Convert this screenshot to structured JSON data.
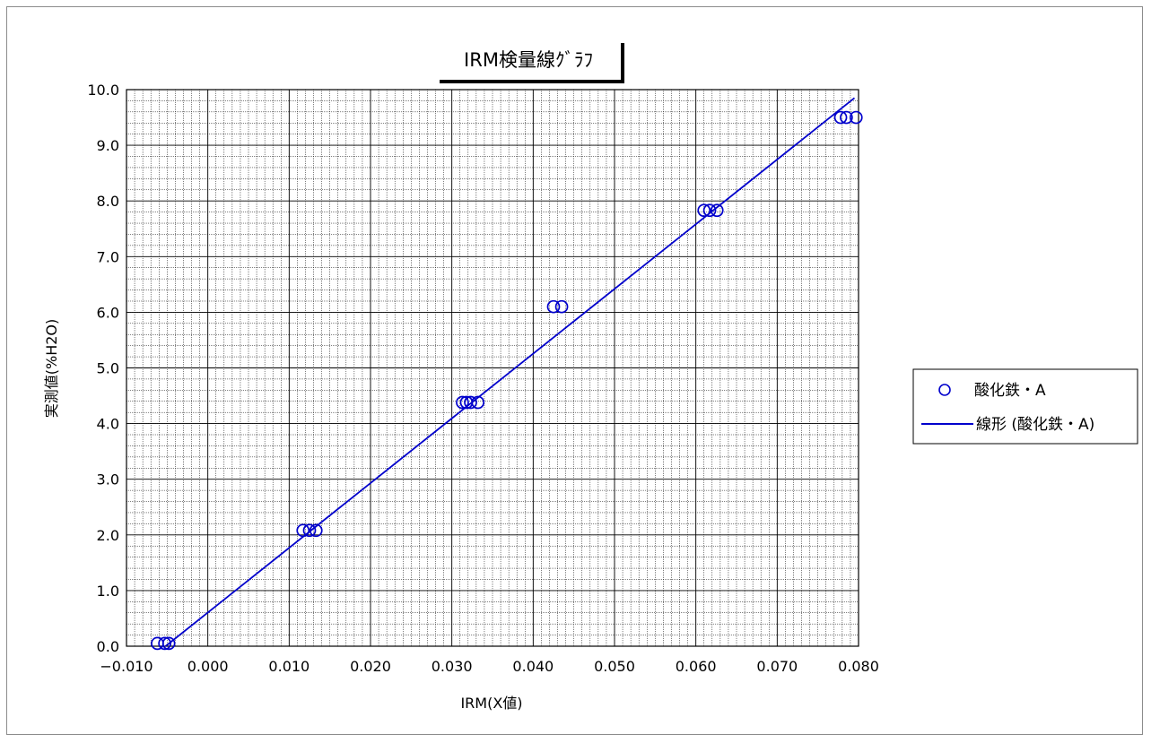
{
  "chart_data": {
    "type": "scatter",
    "title": "IRM検量線ｸﾞﾗﾌ",
    "xlabel": "IRM(X値)",
    "ylabel": "実測値(%H2O)",
    "xlim": [
      -0.01,
      0.08
    ],
    "ylim": [
      0.0,
      10.0
    ],
    "x_ticks": [
      "−0.010",
      "0.000",
      "0.010",
      "0.020",
      "0.030",
      "0.040",
      "0.050",
      "0.060",
      "0.070",
      "0.080"
    ],
    "y_ticks": [
      "0.0",
      "1.0",
      "2.0",
      "3.0",
      "4.0",
      "5.0",
      "6.0",
      "7.0",
      "8.0",
      "9.0",
      "10.0"
    ],
    "grid": true,
    "legend_position": "right",
    "series": [
      {
        "name": "酸化鉄・A",
        "kind": "scatter",
        "color": "#0000cc",
        "points": [
          [
            -0.0062,
            0.05
          ],
          [
            -0.0053,
            0.05
          ],
          [
            -0.0048,
            0.05
          ],
          [
            0.0117,
            2.08
          ],
          [
            0.0125,
            2.08
          ],
          [
            0.0133,
            2.08
          ],
          [
            0.0313,
            4.38
          ],
          [
            0.0318,
            4.38
          ],
          [
            0.0323,
            4.38
          ],
          [
            0.0332,
            4.38
          ],
          [
            0.0425,
            6.1
          ],
          [
            0.0435,
            6.1
          ],
          [
            0.061,
            7.83
          ],
          [
            0.0617,
            7.83
          ],
          [
            0.0626,
            7.83
          ],
          [
            0.0778,
            9.5
          ],
          [
            0.0785,
            9.5
          ],
          [
            0.0797,
            9.5
          ]
        ]
      },
      {
        "name": "線形 (酸化鉄・A)",
        "kind": "line",
        "color": "#0000cc",
        "points": [
          [
            -0.0052,
            0.0
          ],
          [
            0.0795,
            9.85
          ]
        ]
      }
    ]
  }
}
